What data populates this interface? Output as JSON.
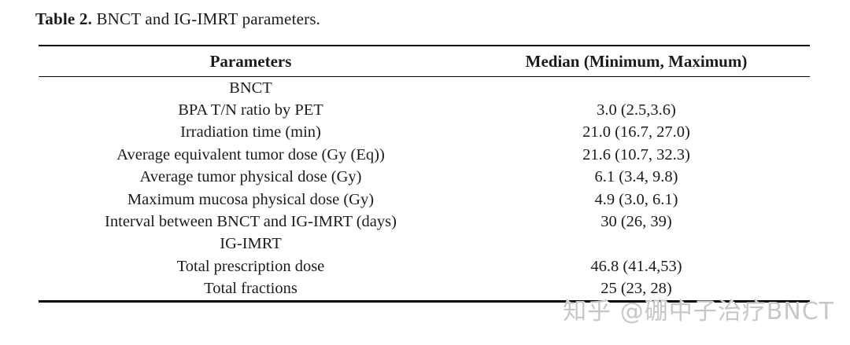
{
  "caption": {
    "label": "Table 2.",
    "text": " BNCT and IG-IMRT parameters."
  },
  "table": {
    "headers": {
      "parameters": "Parameters",
      "median": "Median (Minimum, Maximum)"
    },
    "rows": [
      {
        "parameter": "BNCT",
        "value": ""
      },
      {
        "parameter": "BPA T/N ratio by PET",
        "value": "3.0 (2.5,3.6)"
      },
      {
        "parameter": "Irradiation time (min)",
        "value": "21.0 (16.7, 27.0)"
      },
      {
        "parameter": "Average equivalent tumor dose (Gy (Eq))",
        "value": "21.6 (10.7, 32.3)"
      },
      {
        "parameter": "Average tumor physical dose (Gy)",
        "value": "6.1 (3.4, 9.8)"
      },
      {
        "parameter": "Maximum mucosa physical dose (Gy)",
        "value": "4.9 (3.0, 6.1)"
      },
      {
        "parameter": "Interval between BNCT and IG-IMRT (days)",
        "value": "30 (26, 39)"
      },
      {
        "parameter": "IG-IMRT",
        "value": ""
      },
      {
        "parameter": "Total prescription dose",
        "value": "46.8 (41.4,53)"
      },
      {
        "parameter": "Total fractions",
        "value": "25 (23, 28)"
      }
    ]
  },
  "watermark": {
    "text": "知乎 @硼中子治疗BNCT",
    "text_color": "#c7c7c7",
    "emboss_color": "#ffffff"
  }
}
